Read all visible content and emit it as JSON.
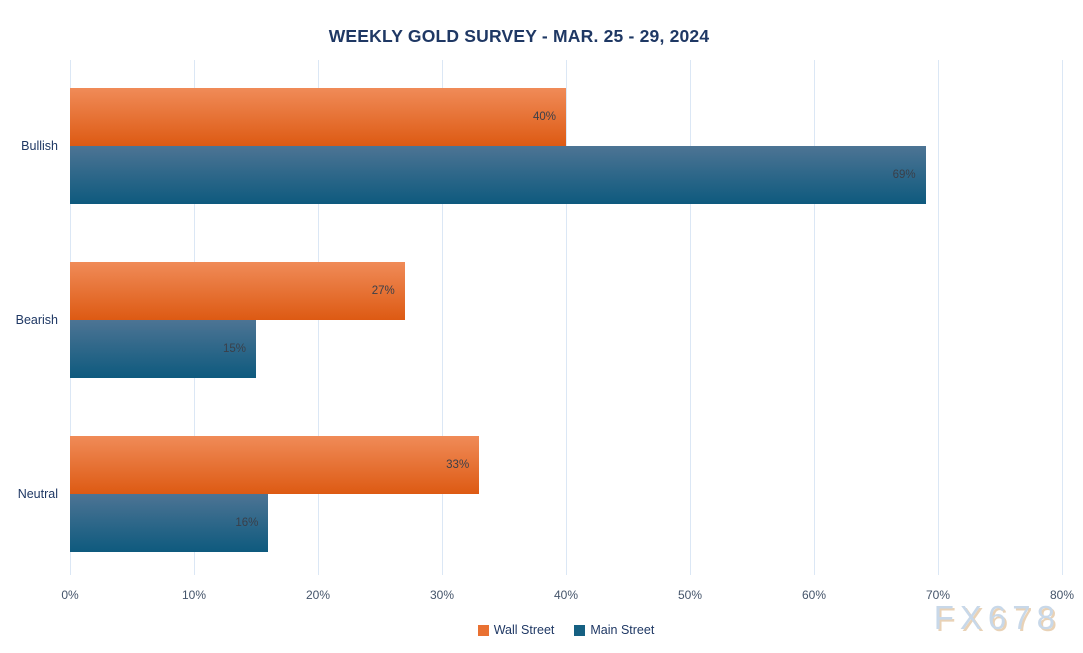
{
  "title": "WEEKLY GOLD SURVEY - MAR. 25 - 29, 2024",
  "watermark": "FX678",
  "colors": {
    "title_text": "#1f3864",
    "category_text": "#1f3864",
    "tick_text": "#44546a",
    "gridline": "#dbe7f5",
    "value_label_text": "#3a3f49",
    "watermark_text": "#c8d8e9",
    "watermark_shadow": "#e9d2b6"
  },
  "chart_data": {
    "type": "bar",
    "orientation": "horizontal",
    "title": "WEEKLY GOLD SURVEY - MAR. 25 - 29, 2024",
    "categories": [
      "Bullish",
      "Bearish",
      "Neutral"
    ],
    "series": [
      {
        "name": "Wall Street",
        "color": "#e97132",
        "gradient_top": "#f08b58",
        "gradient_bottom": "#dd5a13",
        "values": [
          40,
          27,
          33
        ],
        "labels": [
          "40%",
          "27%",
          "33%"
        ]
      },
      {
        "name": "Main Street",
        "color": "#156082",
        "gradient_top": "#4d7494",
        "gradient_bottom": "#0e5a7e",
        "values": [
          69,
          15,
          16
        ],
        "labels": [
          "69%",
          "15%",
          "16%"
        ]
      }
    ],
    "xlabel": "",
    "ylabel": "",
    "xlim": [
      0,
      80
    ],
    "x_tick_values": [
      0,
      10,
      20,
      30,
      40,
      50,
      60,
      70,
      80
    ],
    "x_tick_labels": [
      "0%",
      "10%",
      "20%",
      "30%",
      "40%",
      "50%",
      "60%",
      "70%",
      "80%"
    ],
    "grid": true,
    "legend_position": "bottom"
  }
}
